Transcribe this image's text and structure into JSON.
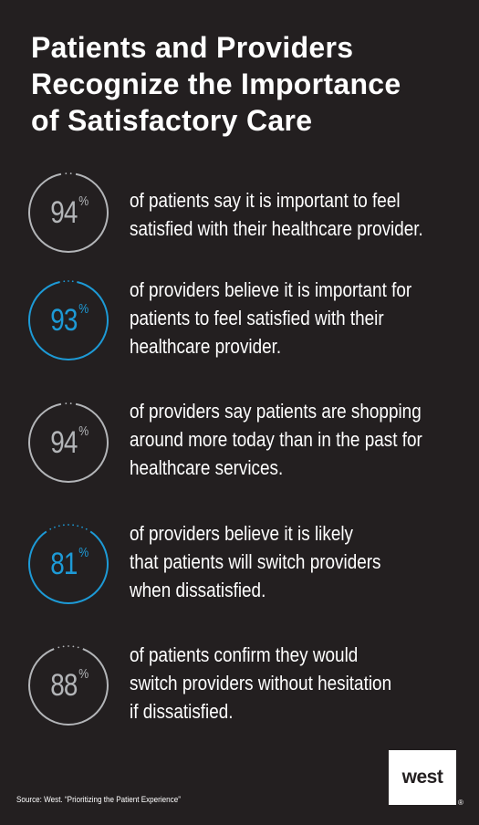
{
  "title_lines": [
    "Patients and Providers",
    "Recognize the Importance",
    "of Satisfactory Care"
  ],
  "stats": [
    {
      "value": "94",
      "unit": "%",
      "ring_color": "#b3b5b8",
      "text_color": "#b3b5b8",
      "lines": [
        "of patients say it is important to feel",
        "satisfied with their healthcare provider."
      ]
    },
    {
      "value": "93",
      "unit": "%",
      "ring_color": "#1d9ad6",
      "text_color": "#1d9ad6",
      "lines": [
        "of providers believe it is important for",
        "patients to feel satisfied with their",
        "healthcare provider."
      ]
    },
    {
      "value": "94",
      "unit": "%",
      "ring_color": "#b3b5b8",
      "text_color": "#b3b5b8",
      "lines": [
        "of providers say patients are shopping",
        "around more today than in the past for",
        "healthcare services."
      ]
    },
    {
      "value": "81",
      "unit": "%",
      "ring_color": "#1d9ad6",
      "text_color": "#1d9ad6",
      "lines": [
        "of providers believe it is likely",
        "that patients will switch providers",
        "when dissatisfied."
      ]
    },
    {
      "value": "88",
      "unit": "%",
      "ring_color": "#b3b5b8",
      "text_color": "#b3b5b8",
      "lines": [
        "of patients confirm they would",
        "switch providers without hesitation",
        "if dissatisfied."
      ]
    }
  ],
  "source": "Source:  West. “Prioritizing the Patient Experience”",
  "logo": {
    "text": "west",
    "registered": "®"
  },
  "colors": {
    "background": "#231f20",
    "accent": "#1d9ad6",
    "gray": "#b3b5b8"
  }
}
